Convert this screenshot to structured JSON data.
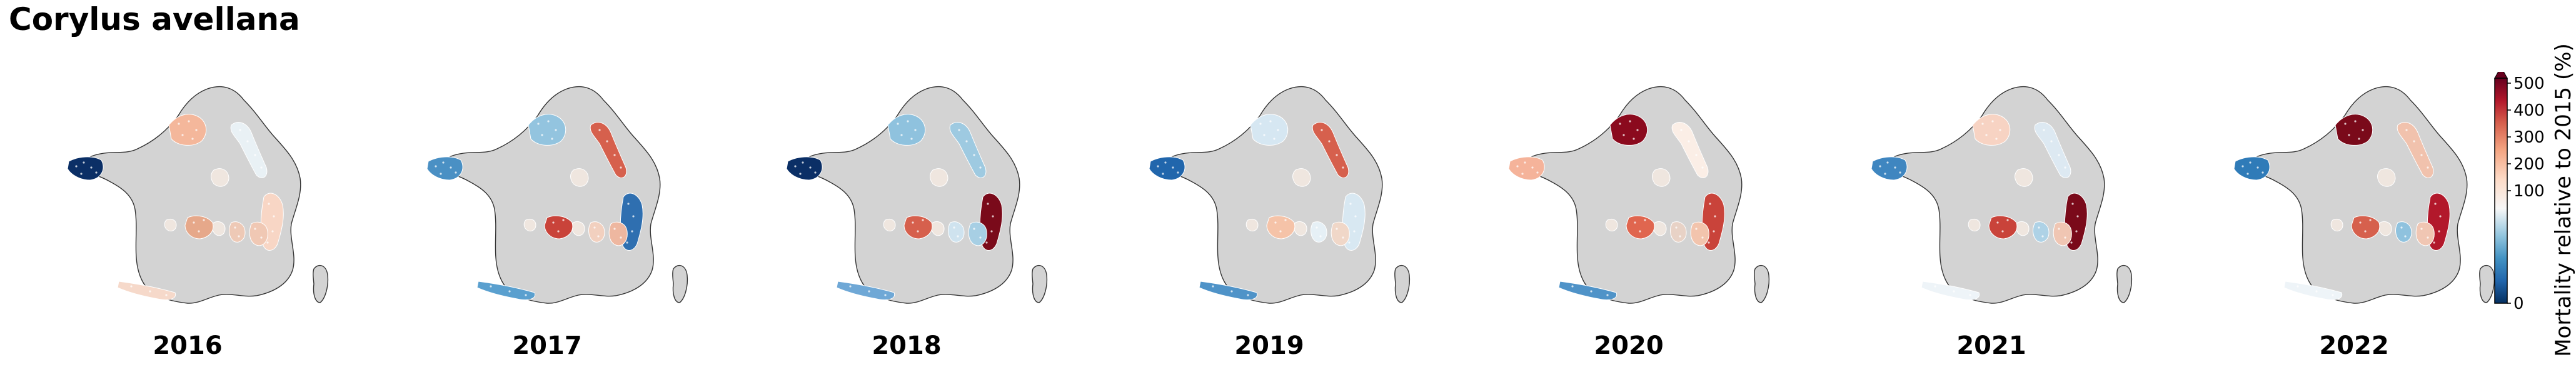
{
  "title": "Corylus avellana",
  "colors": {
    "land": "#d3d3d3",
    "border": "#333333"
  },
  "panels": [
    {
      "year": "2016",
      "regions": [
        "#0b2f66",
        "#f4b79b",
        "#e9f1f5",
        "#f8d6c5",
        "#e6a88a",
        "#f0c8b4",
        "#eec9b6",
        "#f6d9ca"
      ]
    },
    {
      "year": "2017",
      "regions": [
        "#4a90c4",
        "#93c4df",
        "#d6604d",
        "#2f6fb0",
        "#c9433a",
        "#eeb7a0",
        "#f2d0bf",
        "#5aa0cf"
      ]
    },
    {
      "year": "2018",
      "regions": [
        "#0b2f66",
        "#8fc2de",
        "#9ecae1",
        "#7a0a1a",
        "#d6604d",
        "#a7cfe4",
        "#cfe3ef",
        "#6fa8d6"
      ]
    },
    {
      "year": "2019",
      "regions": [
        "#2166ac",
        "#d6e7f2",
        "#d6604d",
        "#d8e8f2",
        "#f5c3a8",
        "#f0d7c8",
        "#e6f0f6",
        "#4f93c8"
      ]
    },
    {
      "year": "2020",
      "regions": [
        "#f5b39a",
        "#8b0a1e",
        "#fbeee6",
        "#c9433a",
        "#e0664f",
        "#f2c4ad",
        "#e8d2c6",
        "#4f93c8"
      ]
    },
    {
      "year": "2021",
      "regions": [
        "#3f86c0",
        "#f7d3c3",
        "#dde9f2",
        "#7a0a1a",
        "#c9433a",
        "#f0c6b3",
        "#aed2e6",
        "#eef4f8"
      ]
    },
    {
      "year": "2022",
      "regions": [
        "#2f7bb8",
        "#7a0a1a",
        "#f1c2ad",
        "#b2182b",
        "#d6604d",
        "#f0c6b3",
        "#8fc2de",
        "#eef4f8"
      ]
    }
  ],
  "colorbar": {
    "label": "Mortality relative to 2015 (%)",
    "ticks": [
      "500",
      "400",
      "300",
      "200",
      "100",
      "0"
    ],
    "ticks_values": [
      500,
      400,
      300,
      200,
      100,
      0
    ],
    "extend": "max"
  }
}
